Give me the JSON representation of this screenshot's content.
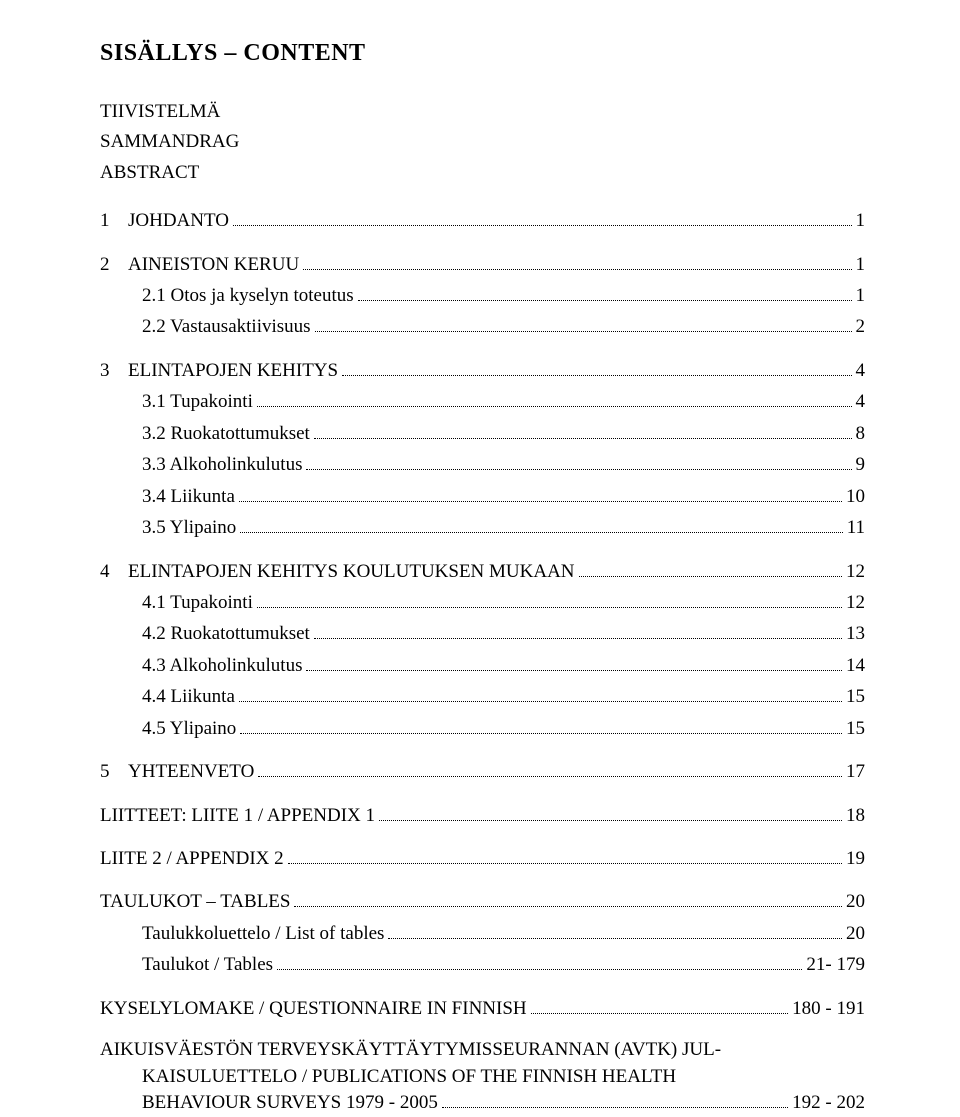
{
  "title": "SISÄLLYS – CONTENT",
  "front_matter": [
    "TIIVISTELMÄ",
    "SAMMANDRAG",
    "ABSTRACT"
  ],
  "sections": [
    {
      "num": "1",
      "label": "JOHDANTO",
      "page": "1",
      "gap": false,
      "indent": 0
    },
    {
      "num": "2",
      "label": "AINEISTON KERUU",
      "page": "1",
      "gap": true,
      "indent": 0
    },
    {
      "num": "",
      "label": "2.1 Otos ja kyselyn toteutus",
      "page": "1",
      "gap": false,
      "indent": 1
    },
    {
      "num": "",
      "label": "2.2 Vastausaktiivisuus",
      "page": "2",
      "gap": false,
      "indent": 1
    },
    {
      "num": "3",
      "label": "ELINTAPOJEN KEHITYS",
      "page": "4",
      "gap": true,
      "indent": 0
    },
    {
      "num": "",
      "label": "3.1 Tupakointi",
      "page": "4",
      "gap": false,
      "indent": 1
    },
    {
      "num": "",
      "label": "3.2 Ruokatottumukset",
      "page": "8",
      "gap": false,
      "indent": 1
    },
    {
      "num": "",
      "label": "3.3 Alkoholinkulutus",
      "page": "9",
      "gap": false,
      "indent": 1
    },
    {
      "num": "",
      "label": "3.4 Liikunta",
      "page": "10",
      "gap": false,
      "indent": 1
    },
    {
      "num": "",
      "label": "3.5 Ylipaino",
      "page": "11",
      "gap": false,
      "indent": 1
    },
    {
      "num": "4",
      "label": "ELINTAPOJEN KEHITYS KOULUTUKSEN MUKAAN",
      "page": "12",
      "gap": true,
      "indent": 0
    },
    {
      "num": "",
      "label": "4.1 Tupakointi",
      "page": "12",
      "gap": false,
      "indent": 1
    },
    {
      "num": "",
      "label": "4.2 Ruokatottumukset",
      "page": "13",
      "gap": false,
      "indent": 1
    },
    {
      "num": "",
      "label": "4.3 Alkoholinkulutus",
      "page": "14",
      "gap": false,
      "indent": 1
    },
    {
      "num": "",
      "label": "4.4 Liikunta",
      "page": "15",
      "gap": false,
      "indent": 1
    },
    {
      "num": "",
      "label": "4.5 Ylipaino",
      "page": "15",
      "gap": false,
      "indent": 1
    },
    {
      "num": "5",
      "label": "YHTEENVETO",
      "page": "17",
      "gap": true,
      "indent": 0
    },
    {
      "num": "",
      "label": "LIITTEET: LIITE 1 / APPENDIX 1",
      "page": "18",
      "gap": true,
      "indent": 0,
      "nonum": true
    },
    {
      "num": "",
      "label": "LIITE 2 / APPENDIX 2",
      "page": "19",
      "gap": true,
      "indent": 0,
      "nonum": true
    },
    {
      "num": "",
      "label": "TAULUKOT – TABLES",
      "page": "20",
      "gap": true,
      "indent": 0,
      "nonum": true
    },
    {
      "num": "",
      "label": "Taulukkoluettelo / List of tables",
      "page": "20",
      "gap": false,
      "indent": 1
    },
    {
      "num": "",
      "label": "Taulukot / Tables",
      "page": "21- 179",
      "gap": false,
      "indent": 1
    },
    {
      "num": "",
      "label": "KYSELYLOMAKE / QUESTIONNAIRE IN FINNISH",
      "page": "180 - 191",
      "gap": true,
      "indent": 0,
      "nonum": true
    }
  ],
  "final_block": {
    "line1": "AIKUISVÄESTÖN TERVEYSKÄYTTÄYTYMISSEURANNAN (AVTK) JUL-",
    "line2_label": "KAISULUETTELO / PUBLICATIONS OF THE FINNISH HEALTH",
    "line3_label": "BEHAVIOUR SURVEYS 1979 - 2005",
    "page": "192 - 202"
  }
}
